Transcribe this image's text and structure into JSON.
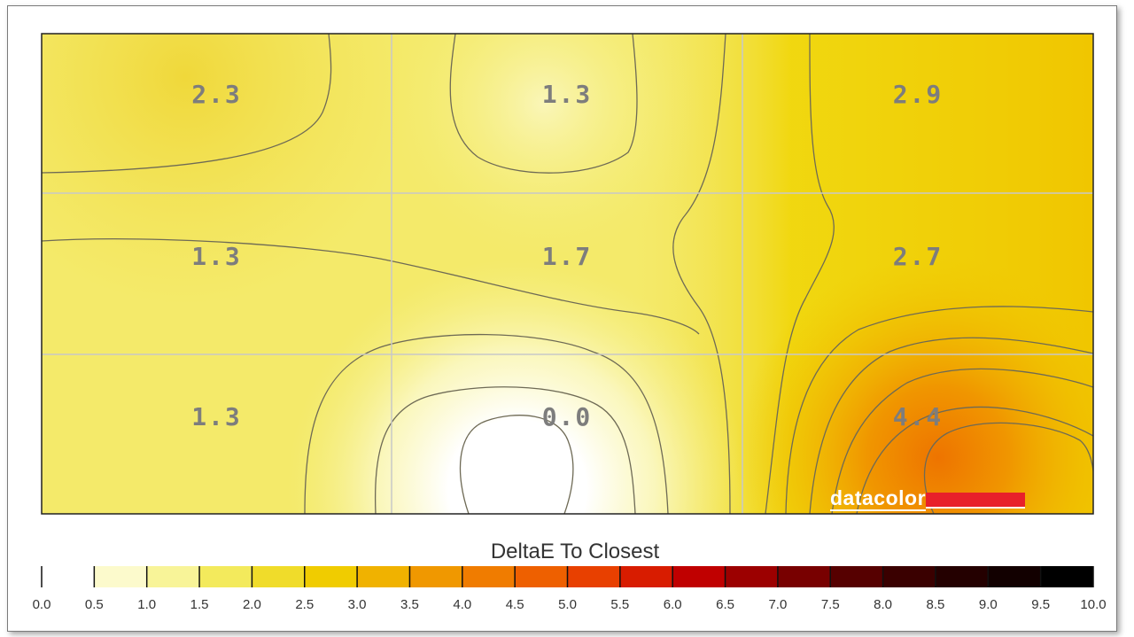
{
  "chart_data": {
    "type": "heatmap",
    "title": "",
    "colorbar_title": "DeltaE To Closest",
    "rows": 3,
    "cols": 3,
    "values": [
      [
        2.3,
        1.3,
        2.9
      ],
      [
        1.3,
        1.7,
        2.7
      ],
      [
        1.3,
        0.0,
        4.4
      ]
    ],
    "labels": [
      [
        "2.3",
        "1.3",
        "2.9"
      ],
      [
        "1.3",
        "1.7",
        "2.7"
      ],
      [
        "1.3",
        "0.0",
        "4.4"
      ]
    ],
    "color_scale": {
      "min": 0.0,
      "max": 10.0,
      "step": 0.5,
      "tick_labels": [
        "0.0",
        "0.5",
        "1.0",
        "1.5",
        "2.0",
        "2.5",
        "3.0",
        "3.5",
        "4.0",
        "4.5",
        "5.0",
        "5.5",
        "6.0",
        "6.5",
        "7.0",
        "7.5",
        "8.0",
        "8.5",
        "9.0",
        "9.5",
        "10.0"
      ],
      "colors": [
        "#ffffff",
        "#fcfacc",
        "#f8f498",
        "#f3ea5c",
        "#f0dc2a",
        "#f0cc00",
        "#f0b200",
        "#f09800",
        "#f07c00",
        "#ee6000",
        "#e84000",
        "#d81c00",
        "#c00000",
        "#9c0000",
        "#780000",
        "#560000",
        "#3a0000",
        "#240000",
        "#120000",
        "#000000"
      ]
    },
    "contours": true,
    "grid": true
  },
  "logo": {
    "text": "datacolor",
    "bar_color": "#e8202a"
  }
}
